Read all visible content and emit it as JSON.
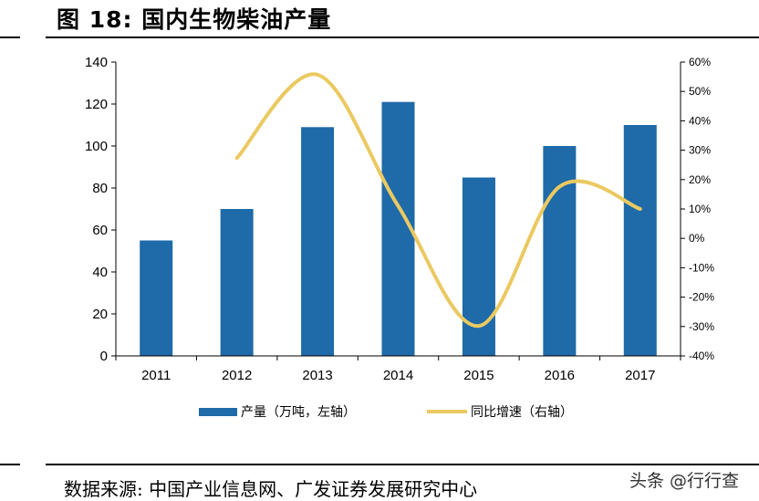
{
  "figure": {
    "title": "图 18: 国内生物柴油产量",
    "source": "数据来源: 中国产业信息网、广发证券发展研究中心",
    "watermark": "头条 @行行查"
  },
  "chart_data": {
    "type": "bar",
    "title": "国内生物柴油产量",
    "categories": [
      "2011",
      "2012",
      "2013",
      "2014",
      "2015",
      "2016",
      "2017"
    ],
    "series": [
      {
        "name": "产量（万吨，左轴）",
        "type": "bar",
        "axis": "left",
        "color": "#1f6aa8",
        "values": [
          55,
          70,
          109,
          121,
          85,
          100,
          110
        ]
      },
      {
        "name": "同比增速（右轴）",
        "type": "line",
        "axis": "right",
        "color": "#ebc961",
        "values": [
          null,
          27.3,
          55.7,
          11.0,
          -29.8,
          17.6,
          10.0
        ]
      }
    ],
    "y_left": {
      "min": 0,
      "max": 140,
      "ticks": [
        0,
        20,
        40,
        60,
        80,
        100,
        120,
        140
      ]
    },
    "y_right": {
      "min": -40,
      "max": 60,
      "ticks": [
        -40,
        -30,
        -20,
        -10,
        0,
        10,
        20,
        30,
        40,
        50,
        60
      ],
      "tick_labels": [
        "-40%",
        "-30%",
        "-20%",
        "-10%",
        "0%",
        "10%",
        "20%",
        "30%",
        "40%",
        "50%",
        "60%"
      ]
    },
    "xlabel": "",
    "ylabel": "",
    "grid": false,
    "legend_position": "bottom"
  }
}
